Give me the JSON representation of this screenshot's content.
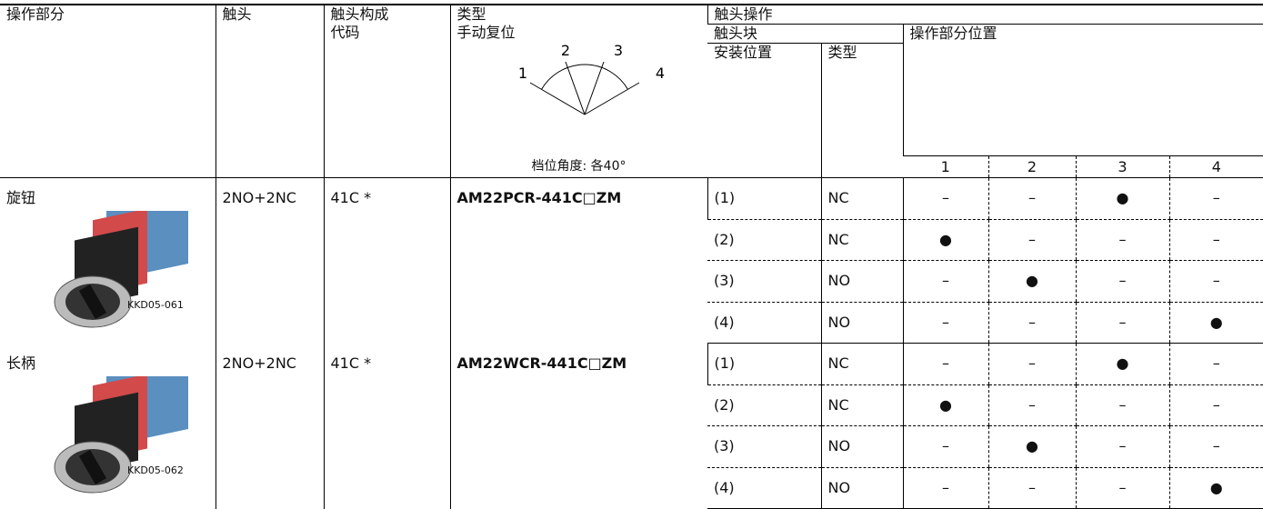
{
  "header": {
    "operator": "操作部分",
    "contact": "触头",
    "code_line1": "触头构成",
    "code_line2": "代码",
    "type_line1": "类型",
    "type_line2": "手动复位",
    "diagram_labels": [
      "1",
      "2",
      "3",
      "4"
    ],
    "diagram_caption": "档位角度: 各40°",
    "contact_operation": "触头操作",
    "contact_block": "触头块",
    "operator_position": "操作部分位置",
    "mount_position": "安装位置",
    "block_type": "类型",
    "positions": [
      "1",
      "2",
      "3",
      "4"
    ]
  },
  "groups": [
    {
      "operator": "旋钮",
      "image_caption": "KKD05-061",
      "contact": "2NO+2NC",
      "code": "41C *",
      "model": "AM22PCR-441C□ZM",
      "blocks": [
        {
          "position": "(1)",
          "type": "NC",
          "states": [
            "–",
            "–",
            "●",
            "–"
          ]
        },
        {
          "position": "(2)",
          "type": "NC",
          "states": [
            "●",
            "–",
            "–",
            "–"
          ]
        },
        {
          "position": "(3)",
          "type": "NO",
          "states": [
            "–",
            "●",
            "–",
            "–"
          ]
        },
        {
          "position": "(4)",
          "type": "NO",
          "states": [
            "–",
            "–",
            "–",
            "●"
          ]
        }
      ]
    },
    {
      "operator": "长柄",
      "image_caption": "KKD05-062",
      "contact": "2NO+2NC",
      "code": "41C *",
      "model": "AM22WCR-441C□ZM",
      "blocks": [
        {
          "position": "(1)",
          "type": "NC",
          "states": [
            "–",
            "–",
            "●",
            "–"
          ]
        },
        {
          "position": "(2)",
          "type": "NC",
          "states": [
            "●",
            "–",
            "–",
            "–"
          ]
        },
        {
          "position": "(3)",
          "type": "NO",
          "states": [
            "–",
            "●",
            "–",
            "–"
          ]
        },
        {
          "position": "(4)",
          "type": "NO",
          "states": [
            "–",
            "–",
            "–",
            "●"
          ]
        }
      ]
    }
  ]
}
